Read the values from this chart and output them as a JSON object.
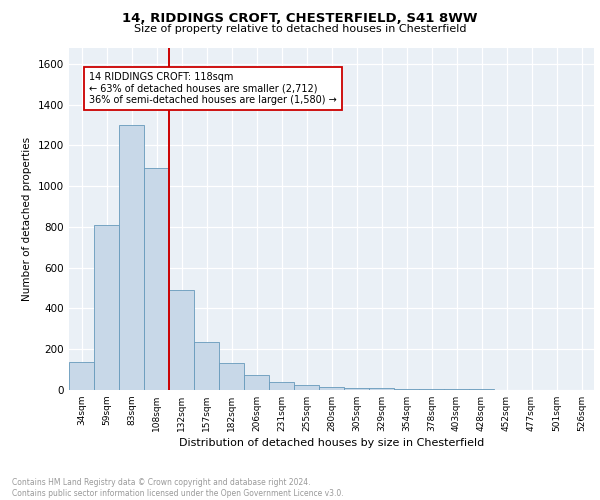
{
  "title1": "14, RIDDINGS CROFT, CHESTERFIELD, S41 8WW",
  "title2": "Size of property relative to detached houses in Chesterfield",
  "xlabel": "Distribution of detached houses by size in Chesterfield",
  "ylabel": "Number of detached properties",
  "categories": [
    "34sqm",
    "59sqm",
    "83sqm",
    "108sqm",
    "132sqm",
    "157sqm",
    "182sqm",
    "206sqm",
    "231sqm",
    "255sqm",
    "280sqm",
    "305sqm",
    "329sqm",
    "354sqm",
    "378sqm",
    "403sqm",
    "428sqm",
    "452sqm",
    "477sqm",
    "501sqm",
    "526sqm"
  ],
  "values": [
    137,
    810,
    1300,
    1090,
    490,
    233,
    133,
    73,
    40,
    25,
    15,
    10,
    8,
    6,
    4,
    4,
    4,
    0,
    0,
    0,
    0
  ],
  "bar_color": "#c8d8e8",
  "bar_edge_color": "#6699bb",
  "vline_x": 3.5,
  "vline_color": "#cc0000",
  "annotation_title": "14 RIDDINGS CROFT: 118sqm",
  "annotation_line1": "← 63% of detached houses are smaller (2,712)",
  "annotation_line2": "36% of semi-detached houses are larger (1,580) →",
  "annotation_box_color": "#ffffff",
  "annotation_box_edge": "#cc0000",
  "ylim": [
    0,
    1680
  ],
  "yticks": [
    0,
    200,
    400,
    600,
    800,
    1000,
    1200,
    1400,
    1600
  ],
  "footer": "Contains HM Land Registry data © Crown copyright and database right 2024.\nContains public sector information licensed under the Open Government Licence v3.0.",
  "bg_color": "#eaf0f6",
  "grid_color": "#ffffff",
  "title1_fontsize": 9.5,
  "title2_fontsize": 8.0,
  "xlabel_fontsize": 8.0,
  "ylabel_fontsize": 7.5,
  "tick_fontsize": 6.5,
  "ytick_fontsize": 7.5,
  "footer_fontsize": 5.5,
  "annot_fontsize": 7.0
}
